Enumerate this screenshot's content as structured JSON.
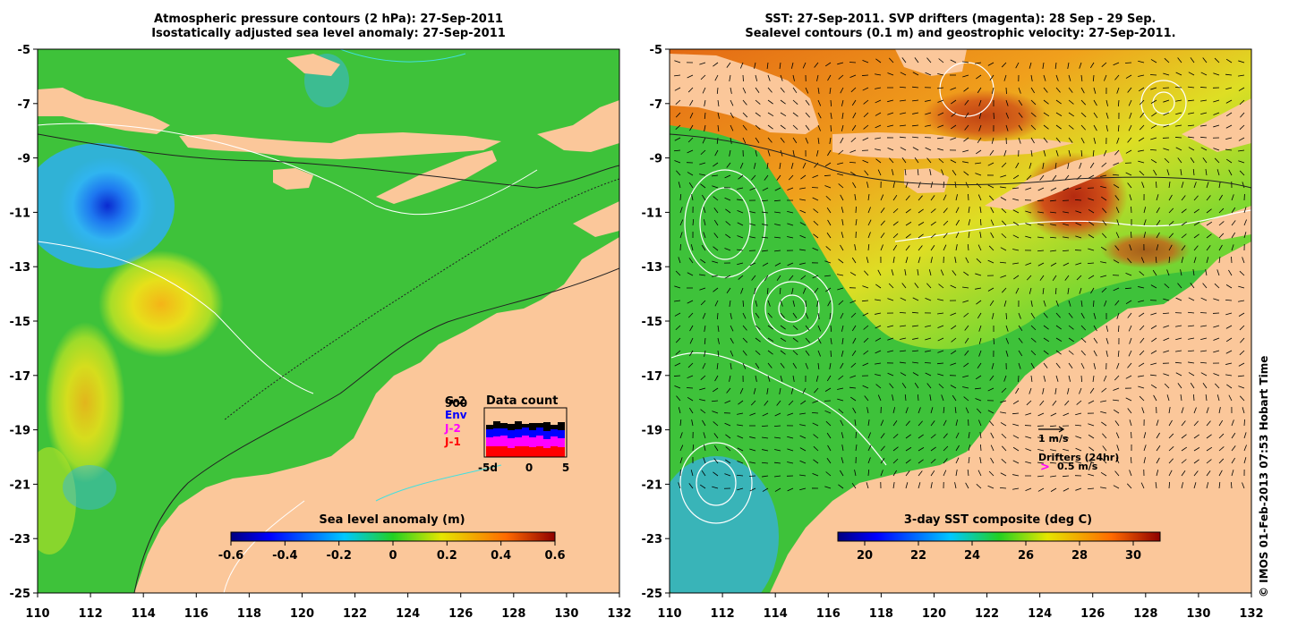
{
  "left_panel": {
    "title_line1": "Atmospheric pressure contours (2 hPa): 27-Sep-2011",
    "title_line2": "Isostatically adjusted sea level anomaly: 27-Sep-2011",
    "colorbar": {
      "label": "Sea level anomaly (m)",
      "min": -0.6,
      "max": 0.6,
      "ticks": [
        "-0.6",
        "-0.4",
        "-0.2",
        "0",
        "0.2",
        "0.4",
        "0.6"
      ],
      "colormap": "jet"
    },
    "data_count": {
      "title": "Data count",
      "legend": [
        {
          "name": "G-2",
          "color": "#000000"
        },
        {
          "name": "900",
          "color": "#000000"
        },
        {
          "name": "Env",
          "color": "#0000ff"
        },
        {
          "name": "J-2",
          "color": "#ff00ff"
        },
        {
          "name": "J-1",
          "color": "#ff0000"
        }
      ],
      "x_ticks": [
        "-5d",
        "0",
        "5"
      ]
    }
  },
  "right_panel": {
    "title_line1": "SST: 27-Sep-2011. SVP drifters (magenta): 28 Sep - 29 Sep.",
    "title_line2": "Sealevel contours (0.1 m) and geostrophic velocity: 27-Sep-2011.",
    "colorbar": {
      "label": "3-day SST composite (deg C)",
      "min": 19,
      "max": 31,
      "ticks": [
        "20",
        "22",
        "24",
        "26",
        "28",
        "30"
      ],
      "colormap": "jet"
    },
    "velocity_legend": {
      "scale_label": "1 m/s",
      "drifters_label": "Drifters (24hr)",
      "drifters_glyph": ">",
      "drifters_speed": "0.5 m/s",
      "drifter_color": "#ff00ff"
    }
  },
  "axes": {
    "x_ticks": [
      "110",
      "112",
      "114",
      "116",
      "118",
      "120",
      "122",
      "124",
      "126",
      "128",
      "130",
      "132"
    ],
    "y_ticks": [
      "-5",
      "-7",
      "-9",
      "-11",
      "-13",
      "-15",
      "-17",
      "-19",
      "-21",
      "-23",
      "-25"
    ],
    "lon_range": [
      110,
      132
    ],
    "lat_range": [
      -25,
      -5
    ]
  },
  "credit": "© IMOS 01-Feb-2013 07:53 Hobart Time",
  "colors": {
    "land": "#fbc79a",
    "ocean_anomaly": "#36c236",
    "sst_warm": "#e0701c",
    "sst_cool": "#36c236"
  }
}
